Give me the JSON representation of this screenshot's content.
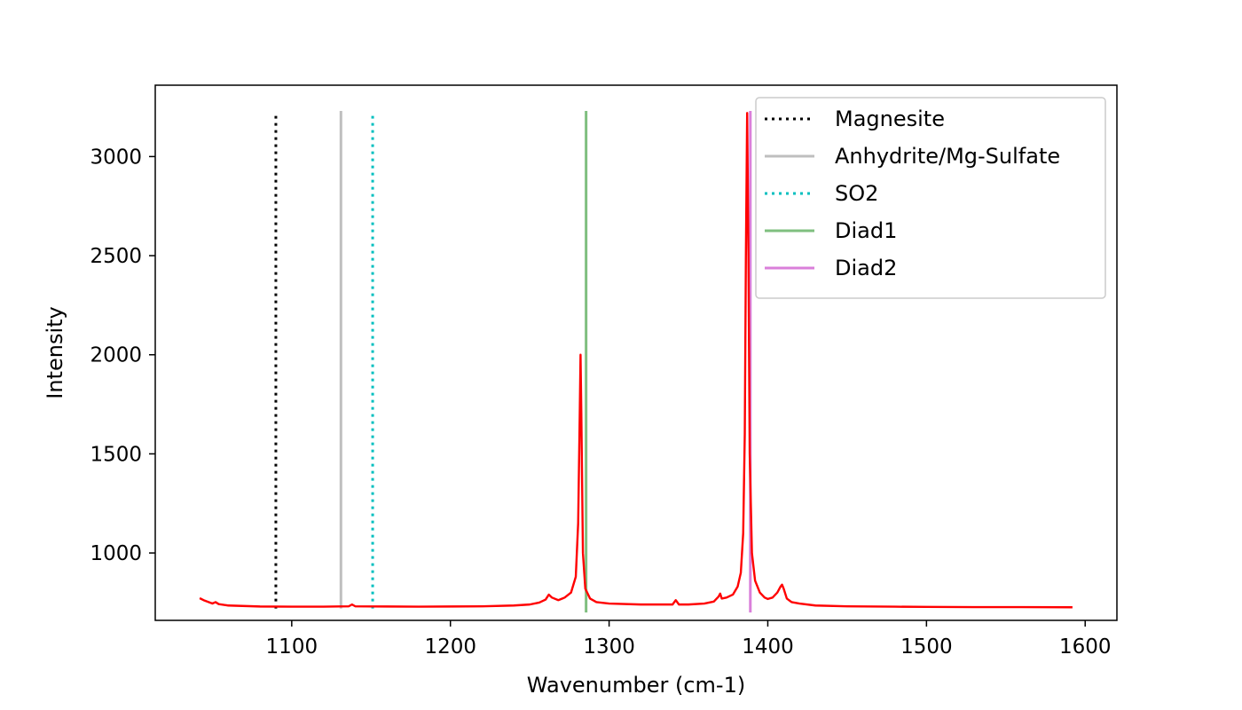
{
  "chart_data": {
    "type": "line",
    "title": "",
    "xlabel": "Wavenumber (cm-1)",
    "ylabel": "Intensity",
    "xlim": [
      1014,
      1620
    ],
    "ylim": [
      660,
      3360
    ],
    "x_ticks": [
      1100,
      1200,
      1300,
      1400,
      1500,
      1600
    ],
    "y_ticks": [
      1000,
      1500,
      2000,
      2500,
      3000
    ],
    "grid": false,
    "legend_position": "top-right",
    "series": [
      {
        "role": "spectrum",
        "color": "#ff0000",
        "style": "solid",
        "x": [
          1042,
          1045,
          1050,
          1052,
          1054,
          1060,
          1080,
          1100,
          1120,
          1136,
          1138,
          1140,
          1160,
          1180,
          1200,
          1220,
          1240,
          1250,
          1256,
          1260,
          1262,
          1264,
          1268,
          1272,
          1276,
          1279,
          1280.5,
          1281.5,
          1282,
          1282.5,
          1283.5,
          1285,
          1288,
          1292,
          1300,
          1320,
          1340,
          1342,
          1344,
          1350,
          1360,
          1366,
          1369,
          1370,
          1371,
          1374,
          1378,
          1381,
          1383,
          1384.5,
          1385.5,
          1386.2,
          1387,
          1387.8,
          1388.6,
          1390,
          1392,
          1395,
          1398,
          1400,
          1403,
          1406,
          1408,
          1409,
          1410,
          1412,
          1415,
          1420,
          1430,
          1450,
          1480,
          1500,
          1530,
          1560,
          1592
        ],
        "y": [
          772,
          760,
          745,
          752,
          742,
          735,
          730,
          729,
          729,
          731,
          740,
          731,
          730,
          729,
          730,
          731,
          735,
          740,
          750,
          765,
          790,
          775,
          762,
          775,
          800,
          880,
          1150,
          1700,
          2000,
          1700,
          1000,
          820,
          770,
          752,
          745,
          740,
          740,
          762,
          740,
          740,
          745,
          755,
          780,
          795,
          770,
          775,
          790,
          830,
          900,
          1100,
          1600,
          2500,
          3220,
          2500,
          1500,
          1000,
          860,
          800,
          775,
          768,
          775,
          800,
          830,
          840,
          820,
          770,
          752,
          745,
          735,
          731,
          729,
          728,
          727,
          727,
          726
        ]
      }
    ],
    "reference_lines": [
      {
        "name": "Magnesite",
        "x": 1090,
        "y0": 720,
        "y1": 3205,
        "color": "#000000",
        "style": "dotted"
      },
      {
        "name": "Anhydrite/Mg-Sulfate",
        "x": 1131,
        "y0": 720,
        "y1": 3230,
        "color": "#bfbfbf",
        "style": "solid"
      },
      {
        "name": "SO2",
        "x": 1151,
        "y0": 720,
        "y1": 3205,
        "color": "#00bfbf",
        "style": "dotted"
      },
      {
        "name": "Diad1",
        "x": 1285.5,
        "y0": 700,
        "y1": 3230,
        "color": "#7fbf7f",
        "style": "solid"
      },
      {
        "name": "Diad2",
        "x": 1389,
        "y0": 700,
        "y1": 3230,
        "color": "#da7fda",
        "style": "solid"
      }
    ],
    "legend": [
      {
        "label": "Magnesite",
        "color": "#000000",
        "style": "dotted"
      },
      {
        "label": "Anhydrite/Mg-Sulfate",
        "color": "#bfbfbf",
        "style": "solid"
      },
      {
        "label": "SO2",
        "color": "#00bfbf",
        "style": "dotted"
      },
      {
        "label": "Diad1",
        "color": "#7fbf7f",
        "style": "solid"
      },
      {
        "label": "Diad2",
        "color": "#da7fda",
        "style": "solid"
      }
    ]
  }
}
